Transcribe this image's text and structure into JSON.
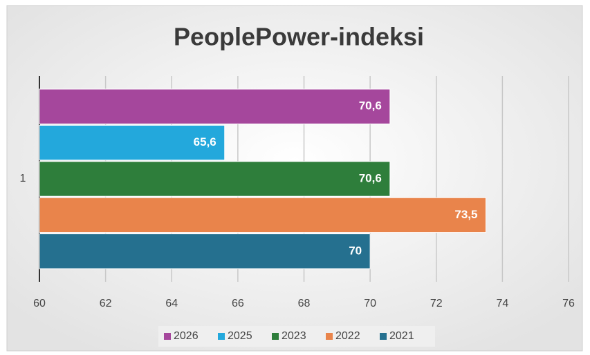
{
  "chart_data": {
    "type": "hbar",
    "title": "PeoplePower-indeksi",
    "categories": [
      "1"
    ],
    "series": [
      {
        "name": "2026",
        "color": "#a5479c",
        "values": [
          70.6
        ],
        "value_labels": [
          "70,6"
        ]
      },
      {
        "name": "2025",
        "color": "#23a8dc",
        "values": [
          65.6
        ],
        "value_labels": [
          "65,6"
        ]
      },
      {
        "name": "2023",
        "color": "#2e7e3b",
        "values": [
          70.6
        ],
        "value_labels": [
          "70,6"
        ]
      },
      {
        "name": "2022",
        "color": "#e9844b",
        "values": [
          73.5
        ],
        "value_labels": [
          "73,5"
        ]
      },
      {
        "name": "2021",
        "color": "#25708f",
        "values": [
          70
        ],
        "value_labels": [
          "70"
        ]
      }
    ],
    "xlim": [
      60,
      76
    ],
    "xticks": [
      60,
      62,
      64,
      66,
      68,
      70,
      72,
      74,
      76
    ],
    "grid": true,
    "legend": "bottom"
  }
}
